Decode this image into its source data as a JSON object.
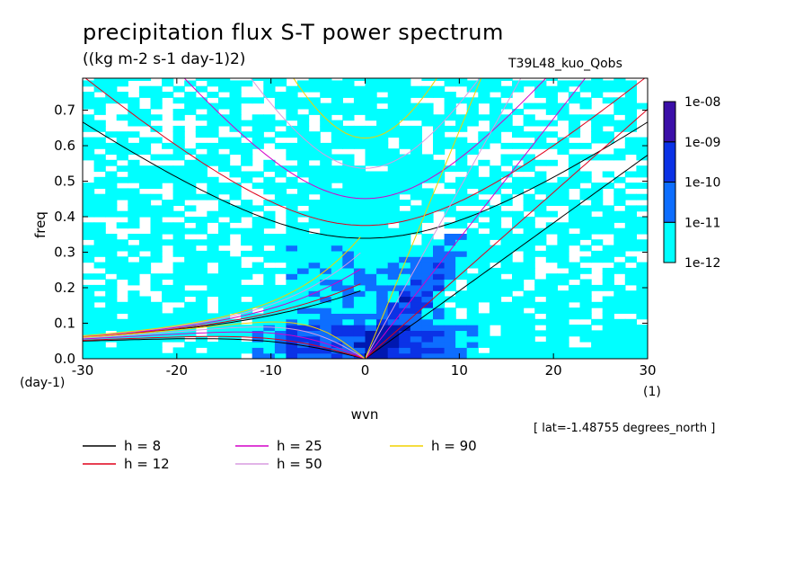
{
  "title": "precipitation flux S-T power spectrum",
  "subtitle": "((kg m-2 s-1 day-1)2)",
  "run_id": "T39L48_kuo_Qobs",
  "lat_note": "[ lat=-1.48755 degrees_north ]",
  "chart_data": {
    "type": "heatmap",
    "xlabel": "wvn",
    "ylabel": "freq",
    "x_unit": "(1)",
    "y_unit": "(day-1)",
    "xlim": [
      -30,
      30
    ],
    "ylim": [
      0,
      0.79
    ],
    "x_ticks": [
      "-30",
      "-20",
      "-10",
      "0",
      "10",
      "20",
      "30"
    ],
    "y_ticks": [
      "0.0",
      "0.1",
      "0.2",
      "0.3",
      "0.4",
      "0.5",
      "0.6",
      "0.7"
    ],
    "colorbar": {
      "labels": [
        "1e-12",
        "1e-11",
        "1e-10",
        "1e-09",
        "1e-08"
      ],
      "colors": [
        "#00ffff",
        "#0d6eff",
        "#0b32e6",
        "#0018b0",
        "#3b0fa8"
      ]
    },
    "dispersion_curves": [
      {
        "name": "h =  8",
        "color": "#000000",
        "h": 8
      },
      {
        "name": "h = 12",
        "color": "#e0001a",
        "h": 12
      },
      {
        "name": "h = 25",
        "color": "#d400c8",
        "h": 25
      },
      {
        "name": "h = 50",
        "color": "#d99be0",
        "h": 50
      },
      {
        "name": "h = 90",
        "color": "#f2d200",
        "h": 90
      }
    ]
  }
}
